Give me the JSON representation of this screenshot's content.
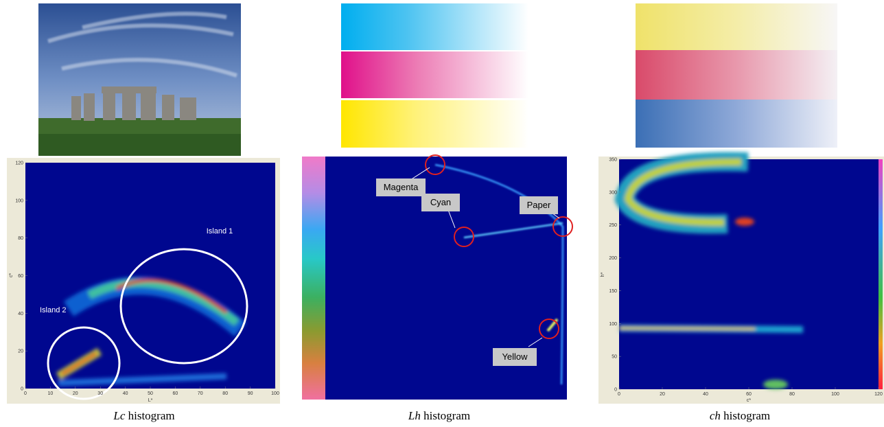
{
  "panels": [
    {
      "caption_em": "Lc",
      "caption": "histogram",
      "plot": {
        "xlabel": "L*",
        "ylabel": "c*",
        "xticks": [
          0,
          10,
          20,
          30,
          40,
          50,
          60,
          70,
          80,
          90,
          100
        ],
        "yticks": [
          0,
          20,
          40,
          60,
          80,
          100,
          120
        ],
        "annotations": [
          "Island 1",
          "Island 2"
        ]
      }
    },
    {
      "caption_em": "Lh",
      "caption": "histogram",
      "plot": {
        "annotations": [
          "Magenta",
          "Paper",
          "Cyan",
          "Yellow"
        ]
      }
    },
    {
      "caption_em": "ch",
      "caption": "histogram",
      "plot": {
        "xlabel": "c*",
        "ylabel": "h*",
        "xticks": [
          0,
          20,
          40,
          60,
          80,
          100,
          120
        ],
        "yticks": [
          0,
          50,
          100,
          150,
          200,
          250,
          300,
          350
        ]
      }
    }
  ]
}
